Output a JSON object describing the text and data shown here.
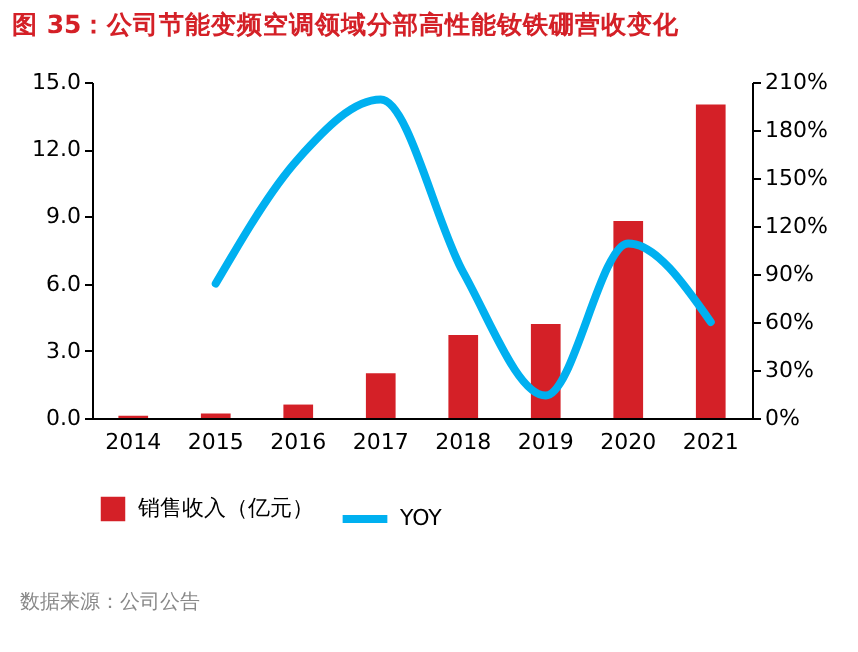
{
  "chart_data": {
    "type": "bar",
    "title": "图 35：公司节能变频空调领域分部高性能钕铁硼营收变化",
    "categories": [
      "2014",
      "2015",
      "2016",
      "2017",
      "2018",
      "2019",
      "2020",
      "2021"
    ],
    "series": [
      {
        "name": "销售收入（亿元）",
        "color": "#d42027",
        "values": [
          0.1,
          0.2,
          0.6,
          2.0,
          3.7,
          4.2,
          8.8,
          14.0
        ]
      },
      {
        "name": "YOY",
        "type": "line",
        "axis": "y2",
        "color": "#00b0f0",
        "values": [
          null,
          84,
          162,
          199,
          91,
          14,
          109,
          60
        ]
      }
    ],
    "ylim": [
      0,
      15
    ],
    "yticks": [
      {
        "value": 0,
        "label": "0.0"
      },
      {
        "value": 3,
        "label": "3.0"
      },
      {
        "value": 6,
        "label": "6.0"
      },
      {
        "value": 9,
        "label": "9.0"
      },
      {
        "value": 12,
        "label": "12.0"
      },
      {
        "value": 15,
        "label": "15.0"
      }
    ],
    "y2lim": [
      0,
      210
    ],
    "y2ticks": [
      {
        "value": 0,
        "label": "0%"
      },
      {
        "value": 30,
        "label": "30%"
      },
      {
        "value": 60,
        "label": "60%"
      },
      {
        "value": 90,
        "label": "90%"
      },
      {
        "value": 120,
        "label": "120%"
      },
      {
        "value": 150,
        "label": "150%"
      },
      {
        "value": 180,
        "label": "180%"
      },
      {
        "value": 210,
        "label": "210%"
      }
    ],
    "legend": "bottom",
    "grid": false,
    "annotations": [
      "数据来源：公司公告"
    ]
  }
}
